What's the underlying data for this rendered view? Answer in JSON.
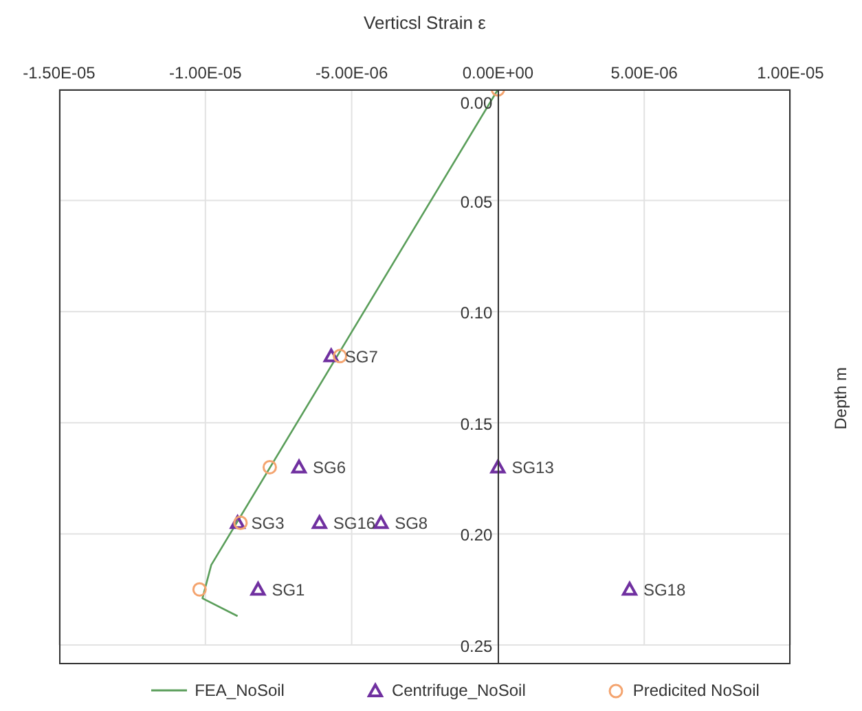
{
  "chart_data": {
    "type": "scatter",
    "xlabel": "Verticsl Strain ε",
    "ylabel": "Depth m",
    "xlim": [
      -1.5e-05,
      1e-05
    ],
    "xticks": [
      {
        "value": -1.5e-05,
        "label": "-1.50E-05"
      },
      {
        "value": -1e-05,
        "label": "-1.00E-05"
      },
      {
        "value": -5e-06,
        "label": "-5.00E-06"
      },
      {
        "value": 0,
        "label": "0.00E+00"
      },
      {
        "value": 5e-06,
        "label": "5.00E-06"
      },
      {
        "value": 1e-05,
        "label": "1.00E-05"
      }
    ],
    "ylim": [
      0.25,
      0
    ],
    "yticks": [
      {
        "value": 0,
        "label": "0.00"
      },
      {
        "value": 0.05,
        "label": "0.05"
      },
      {
        "value": 0.1,
        "label": "0.10"
      },
      {
        "value": 0.15,
        "label": "0.15"
      },
      {
        "value": 0.2,
        "label": "0.20"
      },
      {
        "value": 0.25,
        "label": "0.25"
      }
    ],
    "grid": true,
    "legend": "bottom",
    "series": [
      {
        "name": "FEA_NoSoil",
        "type": "line",
        "marker": "none",
        "color": "#5a9e5a",
        "x": [
          0,
          -9.8e-06,
          -1.01e-05,
          -8.9e-06
        ],
        "values": [
          0,
          0.214,
          0.229,
          0.237
        ]
      },
      {
        "name": "Centrifuge_NoSoil",
        "type": "scatter",
        "marker": "triangle",
        "color": "#7030a0",
        "x": [
          -5.7e-06,
          -6.8e-06,
          -8.9e-06,
          -6.1e-06,
          -4e-06,
          -8.2e-06,
          0,
          4.5e-06
        ],
        "values": [
          0.12,
          0.17,
          0.195,
          0.195,
          0.195,
          0.225,
          0.17,
          0.225
        ]
      },
      {
        "name": "Predicited NoSoil",
        "type": "scatter",
        "marker": "circle",
        "color": "#f4a46f",
        "x": [
          0,
          -5.4e-06,
          -7.8e-06,
          -8.8e-06,
          -1.02e-05
        ],
        "values": [
          0,
          0.12,
          0.17,
          0.195,
          0.225
        ]
      }
    ],
    "annotations": [
      {
        "text": "SG7",
        "x": -5.7e-06,
        "y": 0.12
      },
      {
        "text": "SG6",
        "x": -6.8e-06,
        "y": 0.17
      },
      {
        "text": "SG3",
        "x": -8.9e-06,
        "y": 0.195
      },
      {
        "text": "SG16",
        "x": -6.1e-06,
        "y": 0.195
      },
      {
        "text": "SG8",
        "x": -4e-06,
        "y": 0.195
      },
      {
        "text": "SG1",
        "x": -8.2e-06,
        "y": 0.225
      },
      {
        "text": "SG13",
        "x": 0,
        "y": 0.17
      },
      {
        "text": "SG18",
        "x": 4.5e-06,
        "y": 0.225
      }
    ]
  }
}
